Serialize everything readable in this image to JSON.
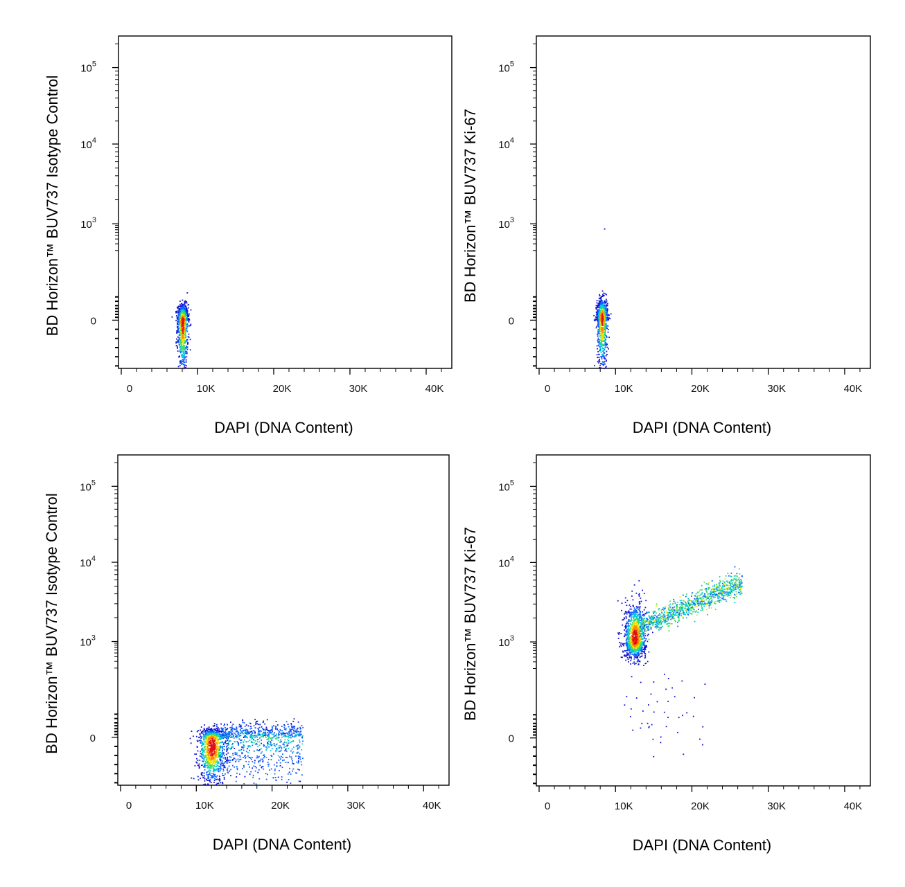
{
  "chart_data": [
    {
      "type": "scatter",
      "panel": "top-left",
      "xlabel": "DAPI (DNA Content)",
      "ylabel": "BD Horizon™ BUV737 Isotype Control",
      "xticks": [
        "0",
        "10K",
        "20K",
        "30K",
        "40K"
      ],
      "yticks": [
        "0",
        "10",
        "10",
        "10"
      ],
      "ytick_exponents": [
        "",
        "3",
        "4",
        "5"
      ],
      "xlim": [
        0,
        43000
      ],
      "y_scale": "biexponential",
      "populations": [
        {
          "x_center": 8000,
          "x_spread": 350,
          "y_center": 0,
          "y_spread": 0.28,
          "count": 900,
          "shape": "narrow vertical cluster"
        }
      ]
    },
    {
      "type": "scatter",
      "panel": "top-right",
      "xlabel": "DAPI (DNA Content)",
      "ylabel": "BD Horizon™ BUV737 Ki-67",
      "xticks": [
        "0",
        "10K",
        "20K",
        "30K",
        "40K"
      ],
      "yticks": [
        "0",
        "10",
        "10",
        "10"
      ],
      "ytick_exponents": [
        "",
        "3",
        "4",
        "5"
      ],
      "xlim": [
        0,
        43000
      ],
      "y_scale": "biexponential",
      "populations": [
        {
          "x_center": 8200,
          "x_spread": 350,
          "y_center": 0.1,
          "y_spread": 0.32,
          "count": 1000,
          "shape": "narrow vertical cluster"
        },
        {
          "x": 8500,
          "y": 2.88,
          "count": 1,
          "shape": "outlier"
        }
      ]
    },
    {
      "type": "scatter",
      "panel": "bottom-left",
      "xlabel": "DAPI (DNA Content)",
      "ylabel": "BD Horizon™ BUV737 Isotype Control",
      "xticks": [
        "0",
        "10K",
        "20K",
        "30K",
        "40K"
      ],
      "yticks": [
        "0",
        "10",
        "10",
        "10"
      ],
      "ytick_exponents": [
        "",
        "3",
        "4",
        "5"
      ],
      "xlim": [
        0,
        43000
      ],
      "y_scale": "biexponential",
      "populations": [
        {
          "x_center": 12000,
          "x_spread": 900,
          "y_center": -0.1,
          "y_spread": 0.2,
          "count": 1100,
          "shape": "dense G1 cluster"
        },
        {
          "x_range": [
            13000,
            24000
          ],
          "y_center": 0,
          "y_spread": 0.25,
          "count": 900,
          "shape": "horizontal S/G2 band"
        }
      ]
    },
    {
      "type": "scatter",
      "panel": "bottom-right",
      "xlabel": "DAPI (DNA Content)",
      "ylabel": "BD Horizon™ BUV737 Ki-67",
      "xticks": [
        "0",
        "10K",
        "20K",
        "30K",
        "40K"
      ],
      "yticks": [
        "0",
        "10",
        "10",
        "10"
      ],
      "ytick_exponents": [
        "",
        "3",
        "4",
        "5"
      ],
      "xlim": [
        0,
        43000
      ],
      "y_scale": "biexponential",
      "populations": [
        {
          "x_center": 12500,
          "x_spread": 700,
          "y_center": 3.05,
          "y_spread": 0.22,
          "count": 1100,
          "shape": "dense G1 cluster"
        },
        {
          "x_range": [
            13000,
            26500
          ],
          "y_range": [
            3.2,
            3.75
          ],
          "count": 1000,
          "shape": "rising S/G2 band"
        },
        {
          "x_range": [
            11000,
            22000
          ],
          "y_range": [
            -0.2,
            2.2
          ],
          "count": 45,
          "shape": "sparse low events"
        }
      ]
    }
  ]
}
